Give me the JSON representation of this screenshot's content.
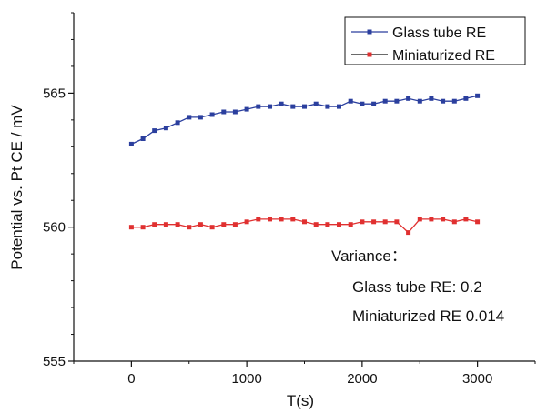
{
  "chart_data": {
    "type": "line",
    "title": "",
    "xlabel": "T(s)",
    "ylabel": "Potential vs. Pt CE / mV",
    "xlim": [
      -500,
      3500
    ],
    "ylim": [
      555,
      568
    ],
    "x_ticks": [
      0,
      1000,
      2000,
      3000
    ],
    "y_ticks": [
      555,
      560,
      565
    ],
    "grid": false,
    "legend_position": "top-right",
    "x": [
      0,
      100,
      200,
      300,
      400,
      500,
      600,
      700,
      800,
      900,
      1000,
      1100,
      1200,
      1300,
      1400,
      1500,
      1600,
      1700,
      1800,
      1900,
      2000,
      2100,
      2200,
      2300,
      2400,
      2500,
      2600,
      2700,
      2800,
      2900,
      3000
    ],
    "series": [
      {
        "name": "Glass tube RE",
        "color": "#2b3f9e",
        "values": [
          563.1,
          563.3,
          563.6,
          563.7,
          563.9,
          564.1,
          564.1,
          564.2,
          564.3,
          564.3,
          564.4,
          564.5,
          564.5,
          564.6,
          564.5,
          564.5,
          564.6,
          564.5,
          564.5,
          564.7,
          564.6,
          564.6,
          564.7,
          564.7,
          564.8,
          564.7,
          564.8,
          564.7,
          564.7,
          564.8,
          564.9
        ]
      },
      {
        "name": "Miniaturized RE",
        "color": "#e03030",
        "values": [
          560.0,
          560.0,
          560.1,
          560.1,
          560.1,
          560.0,
          560.1,
          560.0,
          560.1,
          560.1,
          560.2,
          560.3,
          560.3,
          560.3,
          560.3,
          560.2,
          560.1,
          560.1,
          560.1,
          560.1,
          560.2,
          560.2,
          560.2,
          560.2,
          559.8,
          560.3,
          560.3,
          560.3,
          560.2,
          560.3,
          560.2
        ]
      }
    ],
    "annotations": [
      "Variance：",
      "Glass tube RE:  0.2",
      "Miniaturized RE 0.014"
    ]
  }
}
